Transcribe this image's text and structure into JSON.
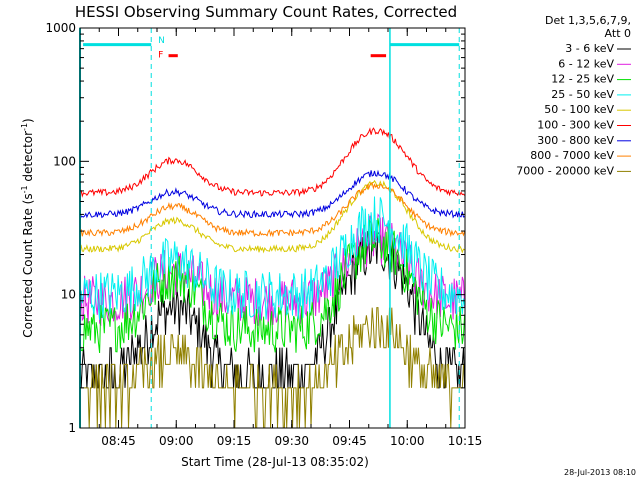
{
  "chart_data": {
    "type": "line",
    "title": "HESSI Observing Summary Count Rates, Corrected",
    "xlabel": "Start Time (28-Jul-13 08:35:02)",
    "ylabel_main": "Corrected Count Rate (s",
    "ylabel_exp1": "-1",
    "ylabel_mid": " detector",
    "ylabel_exp2": "-1",
    "ylabel_end": ")",
    "x_minutes_range": [
      0,
      100
    ],
    "y_log_range": [
      1,
      1000
    ],
    "x_ticks": [
      {
        "label": "08:45",
        "minute": 10
      },
      {
        "label": "09:00",
        "minute": 25
      },
      {
        "label": "09:15",
        "minute": 40
      },
      {
        "label": "09:30",
        "minute": 55
      },
      {
        "label": "09:45",
        "minute": 70
      },
      {
        "label": "10:00",
        "minute": 85
      },
      {
        "label": "10:15",
        "minute": 100
      }
    ],
    "y_ticks": [
      {
        "label": "1",
        "value": 1
      },
      {
        "label": "10",
        "value": 10
      },
      {
        "label": "100",
        "value": 100
      },
      {
        "label": "1000",
        "value": 1000
      }
    ],
    "legend_header": [
      "Det 1,3,5,6,7,9,",
      "Att 0"
    ],
    "legend_position": "right",
    "series": [
      {
        "name": "3 - 6 keV",
        "color": "#000000",
        "base": 2.5,
        "peak1": 8,
        "peak2": 22
      },
      {
        "name": "6 - 12 keV",
        "color": "#e020e0",
        "base": 9,
        "peak1": 15,
        "peak2": 26
      },
      {
        "name": "12 - 25 keV",
        "color": "#00e000",
        "base": 5.5,
        "peak1": 14,
        "peak2": 25
      },
      {
        "name": "25 - 50 keV",
        "color": "#00f0f0",
        "base": 10,
        "peak1": 18,
        "peak2": 37
      },
      {
        "name": "50 - 100 keV",
        "color": "#d8c800",
        "base": 22,
        "peak1": 36,
        "peak2": 68
      },
      {
        "name": "100 - 300 keV",
        "color": "#ff0000",
        "base": 58,
        "peak1": 102,
        "peak2": 170
      },
      {
        "name": "300 - 800 keV",
        "color": "#0000e0",
        "base": 40,
        "peak1": 59,
        "peak2": 82
      },
      {
        "name": "800 - 7000 keV",
        "color": "#ff8000",
        "base": 29,
        "peak1": 46,
        "peak2": 66
      },
      {
        "name": "7000 - 20000 keV",
        "color": "#908000",
        "base": 2,
        "peak1": 3.4,
        "peak2": 6
      }
    ],
    "flags": [
      {
        "label": "N",
        "color": "#00e0e0"
      },
      {
        "label": "F",
        "color": "#ff0000"
      }
    ],
    "colors": {
      "night_bar": "#00e0e0",
      "flare_bar": "#ff0000"
    },
    "footer": "28-Jul-2013 08:10"
  }
}
